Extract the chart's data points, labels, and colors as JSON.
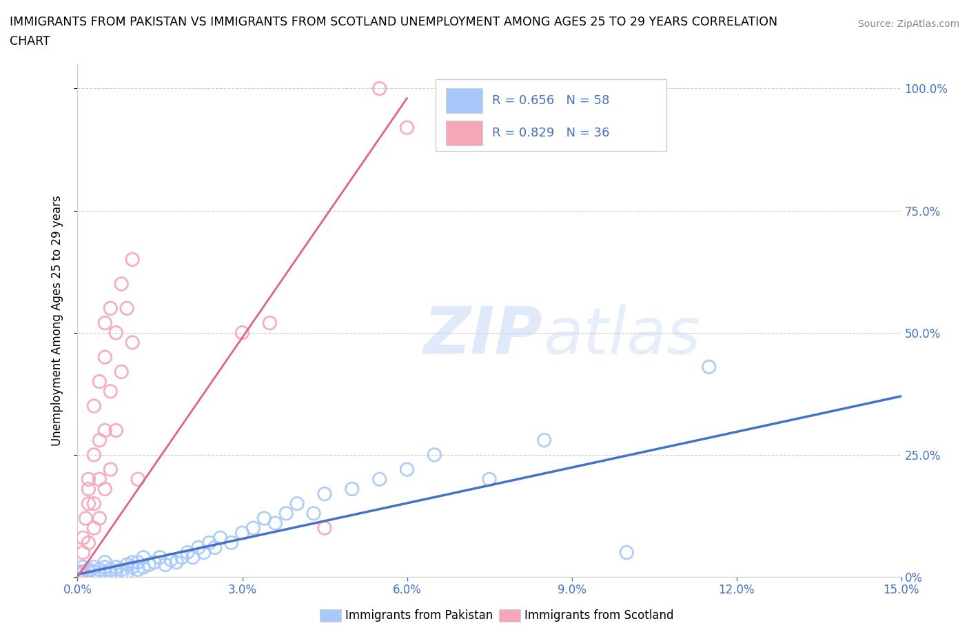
{
  "title_line1": "IMMIGRANTS FROM PAKISTAN VS IMMIGRANTS FROM SCOTLAND UNEMPLOYMENT AMONG AGES 25 TO 29 YEARS CORRELATION",
  "title_line2": "CHART",
  "source": "Source: ZipAtlas.com",
  "xlabel_pakistan": "Immigrants from Pakistan",
  "xlabel_scotland": "Immigrants from Scotland",
  "ylabel": "Unemployment Among Ages 25 to 29 years",
  "xlim": [
    0.0,
    0.15
  ],
  "ylim": [
    0.0,
    1.05
  ],
  "xticks": [
    0.0,
    0.03,
    0.06,
    0.09,
    0.12,
    0.15
  ],
  "xtick_labels": [
    "0.0%",
    "3.0%",
    "6.0%",
    "9.0%",
    "12.0%",
    "15.0%"
  ],
  "yticks": [
    0.0,
    0.25,
    0.5,
    0.75,
    1.0
  ],
  "ytick_labels_right": [
    "0%",
    "25.0%",
    "50.0%",
    "75.0%",
    "100.0%"
  ],
  "pakistan_color": "#a8c8fa",
  "scotland_color": "#f4a7b9",
  "pakistan_line_color": "#4472c4",
  "scotland_line_color": "#e06090",
  "pakistan_R": 0.656,
  "pakistan_N": 58,
  "scotland_R": 0.829,
  "scotland_N": 36,
  "watermark_zip": "ZIP",
  "watermark_atlas": "atlas",
  "pakistan_scatter": [
    [
      0.0005,
      0.005
    ],
    [
      0.001,
      0.01
    ],
    [
      0.001,
      0.02
    ],
    [
      0.0015,
      0.005
    ],
    [
      0.002,
      0.01
    ],
    [
      0.002,
      0.015
    ],
    [
      0.003,
      0.01
    ],
    [
      0.003,
      0.02
    ],
    [
      0.004,
      0.005
    ],
    [
      0.004,
      0.015
    ],
    [
      0.005,
      0.01
    ],
    [
      0.005,
      0.02
    ],
    [
      0.005,
      0.03
    ],
    [
      0.006,
      0.005
    ],
    [
      0.006,
      0.015
    ],
    [
      0.007,
      0.01
    ],
    [
      0.007,
      0.02
    ],
    [
      0.008,
      0.005
    ],
    [
      0.008,
      0.015
    ],
    [
      0.009,
      0.01
    ],
    [
      0.009,
      0.025
    ],
    [
      0.01,
      0.02
    ],
    [
      0.01,
      0.03
    ],
    [
      0.011,
      0.015
    ],
    [
      0.011,
      0.03
    ],
    [
      0.012,
      0.02
    ],
    [
      0.012,
      0.04
    ],
    [
      0.013,
      0.025
    ],
    [
      0.014,
      0.03
    ],
    [
      0.015,
      0.04
    ],
    [
      0.016,
      0.025
    ],
    [
      0.017,
      0.035
    ],
    [
      0.018,
      0.03
    ],
    [
      0.019,
      0.04
    ],
    [
      0.02,
      0.05
    ],
    [
      0.021,
      0.04
    ],
    [
      0.022,
      0.06
    ],
    [
      0.023,
      0.05
    ],
    [
      0.024,
      0.07
    ],
    [
      0.025,
      0.06
    ],
    [
      0.026,
      0.08
    ],
    [
      0.028,
      0.07
    ],
    [
      0.03,
      0.09
    ],
    [
      0.032,
      0.1
    ],
    [
      0.034,
      0.12
    ],
    [
      0.036,
      0.11
    ],
    [
      0.038,
      0.13
    ],
    [
      0.04,
      0.15
    ],
    [
      0.043,
      0.13
    ],
    [
      0.045,
      0.17
    ],
    [
      0.05,
      0.18
    ],
    [
      0.055,
      0.2
    ],
    [
      0.06,
      0.22
    ],
    [
      0.065,
      0.25
    ],
    [
      0.075,
      0.2
    ],
    [
      0.085,
      0.28
    ],
    [
      0.1,
      0.05
    ],
    [
      0.115,
      0.43
    ]
  ],
  "scotland_scatter": [
    [
      0.0005,
      0.01
    ],
    [
      0.001,
      0.05
    ],
    [
      0.001,
      0.08
    ],
    [
      0.0015,
      0.12
    ],
    [
      0.002,
      0.07
    ],
    [
      0.002,
      0.15
    ],
    [
      0.002,
      0.18
    ],
    [
      0.002,
      0.2
    ],
    [
      0.003,
      0.1
    ],
    [
      0.003,
      0.15
    ],
    [
      0.003,
      0.25
    ],
    [
      0.003,
      0.35
    ],
    [
      0.004,
      0.12
    ],
    [
      0.004,
      0.2
    ],
    [
      0.004,
      0.28
    ],
    [
      0.004,
      0.4
    ],
    [
      0.005,
      0.18
    ],
    [
      0.005,
      0.3
    ],
    [
      0.005,
      0.45
    ],
    [
      0.005,
      0.52
    ],
    [
      0.006,
      0.22
    ],
    [
      0.006,
      0.38
    ],
    [
      0.006,
      0.55
    ],
    [
      0.007,
      0.3
    ],
    [
      0.007,
      0.5
    ],
    [
      0.008,
      0.42
    ],
    [
      0.008,
      0.6
    ],
    [
      0.009,
      0.55
    ],
    [
      0.01,
      0.65
    ],
    [
      0.01,
      0.48
    ],
    [
      0.011,
      0.2
    ],
    [
      0.03,
      0.5
    ],
    [
      0.035,
      0.52
    ],
    [
      0.045,
      0.1
    ],
    [
      0.055,
      1.0
    ],
    [
      0.06,
      0.92
    ]
  ],
  "scotland_trend_x": [
    0.0,
    0.06
  ],
  "scotland_trend_y": [
    0.0,
    0.98
  ],
  "pakistan_trend_x": [
    0.0,
    0.15
  ],
  "pakistan_trend_y": [
    0.005,
    0.37
  ]
}
